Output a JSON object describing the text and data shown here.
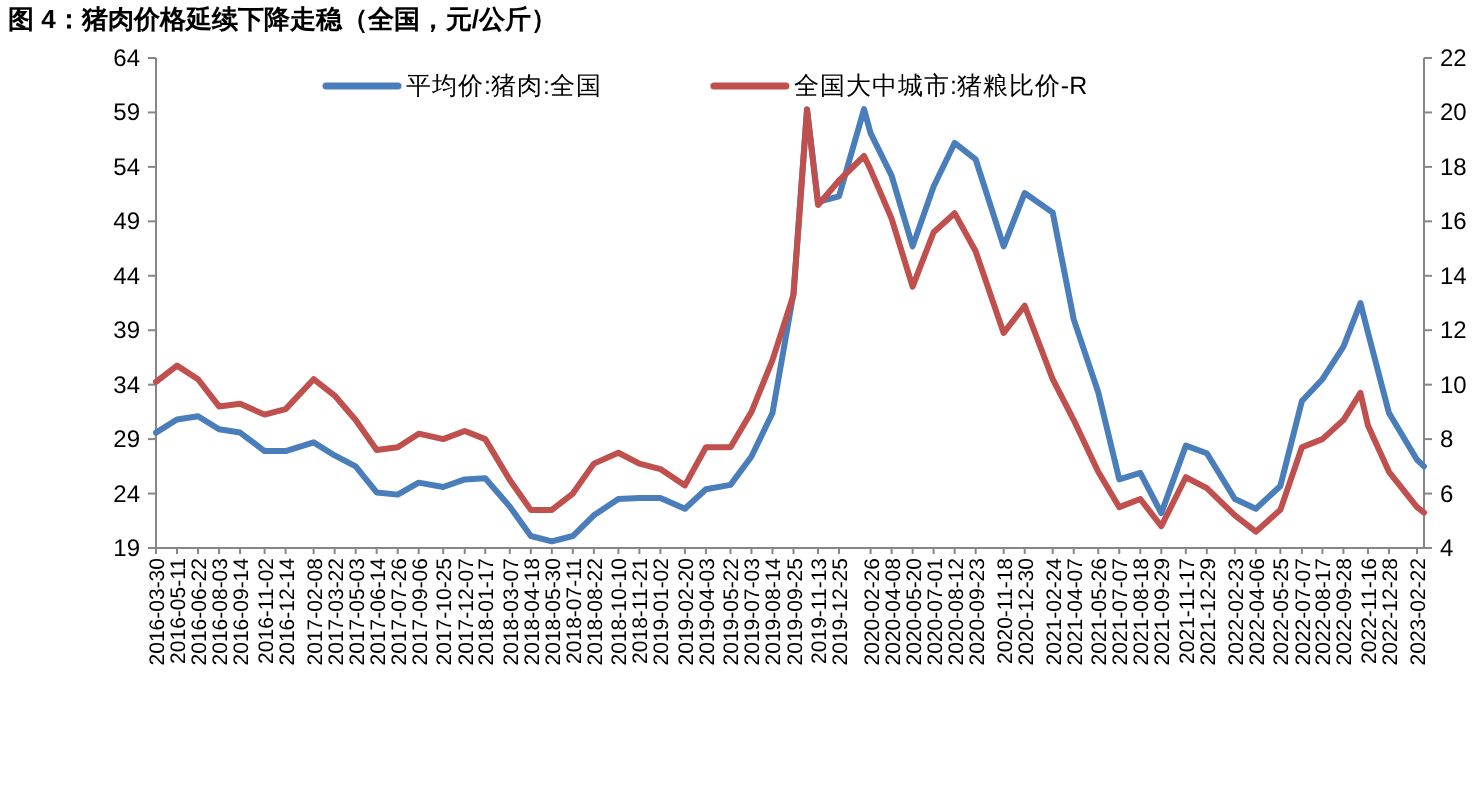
{
  "chart_data": {
    "type": "line",
    "title": "图 4：猪肉价格延续下降走稳（全国，元/公斤）",
    "x": [
      "2016-03-30",
      "2016-05-11",
      "2016-06-22",
      "2016-08-03",
      "2016-09-14",
      "2016-11-02",
      "2016-12-14",
      "2017-02-08",
      "2017-03-22",
      "2017-05-03",
      "2017-06-14",
      "2017-07-26",
      "2017-09-06",
      "2017-10-25",
      "2017-12-07",
      "2018-01-17",
      "2018-03-07",
      "2018-04-18",
      "2018-05-30",
      "2018-07-11",
      "2018-08-22",
      "2018-10-10",
      "2018-11-21",
      "2019-01-02",
      "2019-02-20",
      "2019-04-03",
      "2019-05-22",
      "2019-07-03",
      "2019-08-14",
      "2019-09-25",
      "2019-10-22",
      "2019-11-13",
      "2019-12-25",
      "2020-02-13",
      "2020-02-26",
      "2020-04-08",
      "2020-05-20",
      "2020-07-01",
      "2020-08-12",
      "2020-09-23",
      "2020-11-18",
      "2020-12-30",
      "2021-02-24",
      "2021-04-07",
      "2021-05-26",
      "2021-07-07",
      "2021-08-18",
      "2021-09-29",
      "2021-11-17",
      "2021-12-29",
      "2022-02-23",
      "2022-04-06",
      "2022-05-25",
      "2022-07-07",
      "2022-08-17",
      "2022-09-28",
      "2022-11-01",
      "2022-11-16",
      "2022-12-28",
      "2023-02-22",
      "2023-03-08"
    ],
    "series": [
      {
        "name": "平均价:猪肉:全国",
        "color": "#4a7ebb",
        "values": [
          29.6,
          30.8,
          31.1,
          29.9,
          29.6,
          27.9,
          27.9,
          28.7,
          27.5,
          26.5,
          24.1,
          23.9,
          25,
          24.6,
          25.3,
          25.4,
          22.8,
          20.1,
          19.6,
          20.1,
          22,
          23.5,
          23.6,
          23.6,
          22.6,
          24.4,
          24.8,
          27.4,
          31.4,
          42.4,
          59.3,
          50.8,
          51.3,
          59.3,
          57.1,
          53.2,
          46.7,
          52.2,
          56.2,
          54.7,
          46.7,
          51.6,
          49.8,
          40,
          33.3,
          25.3,
          25.9,
          22.2,
          28.4,
          27.7,
          23.5,
          22.6,
          24.7,
          32.5,
          34.5,
          37.5,
          41.5,
          38.8,
          31.4,
          27.1,
          26.5
        ]
      },
      {
        "name": "全国大中城市:猪粮比价-R",
        "color": "#c0504d",
        "axis": "y2",
        "values": [
          10.1,
          10.7,
          10.2,
          9.2,
          9.3,
          8.9,
          9.1,
          10.2,
          9.6,
          8.7,
          7.6,
          7.7,
          8.2,
          8,
          8.3,
          8,
          6.5,
          5.4,
          5.4,
          6,
          7.1,
          7.5,
          7.1,
          6.9,
          6.3,
          7.7,
          7.7,
          9,
          10.9,
          13.3,
          20.1,
          16.6,
          17.5,
          18.4,
          17.9,
          16.1,
          13.6,
          15.6,
          16.3,
          14.9,
          11.9,
          12.9,
          10.2,
          8.7,
          6.8,
          5.5,
          5.8,
          4.8,
          6.6,
          6.2,
          5.2,
          4.6,
          5.4,
          7.7,
          8,
          8.7,
          9.7,
          8.5,
          6.8,
          5.5,
          5.3
        ]
      }
    ],
    "xlim": [
      "2016-03-30",
      "2023-03-08"
    ],
    "xticks": [
      "2016-03-30",
      "2016-05-11",
      "2016-06-22",
      "2016-08-03",
      "2016-09-14",
      "2016-11-02",
      "2016-12-14",
      "2017-02-08",
      "2017-03-22",
      "2017-05-03",
      "2017-06-14",
      "2017-07-26",
      "2017-09-06",
      "2017-10-25",
      "2017-12-07",
      "2018-01-17",
      "2018-03-07",
      "2018-04-18",
      "2018-05-30",
      "2018-07-11",
      "2018-08-22",
      "2018-10-10",
      "2018-11-21",
      "2019-01-02",
      "2019-02-20",
      "2019-04-03",
      "2019-05-22",
      "2019-07-03",
      "2019-08-14",
      "2019-09-25",
      "2019-11-13",
      "2019-12-25",
      "2020-02-26",
      "2020-04-08",
      "2020-05-20",
      "2020-07-01",
      "2020-08-12",
      "2020-09-23",
      "2020-11-18",
      "2020-12-30",
      "2021-02-24",
      "2021-04-07",
      "2021-05-26",
      "2021-07-07",
      "2021-08-18",
      "2021-09-29",
      "2021-11-17",
      "2021-12-29",
      "2022-02-23",
      "2022-04-06",
      "2022-05-25",
      "2022-07-07",
      "2022-08-17",
      "2022-09-28",
      "2022-11-16",
      "2022-12-28",
      "2023-02-22"
    ],
    "ylim": [
      19,
      64
    ],
    "yticks": [
      19,
      24,
      29,
      34,
      39,
      44,
      49,
      54,
      59,
      64
    ],
    "y2lim": [
      4,
      22
    ],
    "y2ticks": [
      4,
      6,
      8,
      10,
      12,
      14,
      16,
      18,
      20,
      22
    ],
    "legend": "top",
    "grid": false,
    "marker": "none"
  }
}
